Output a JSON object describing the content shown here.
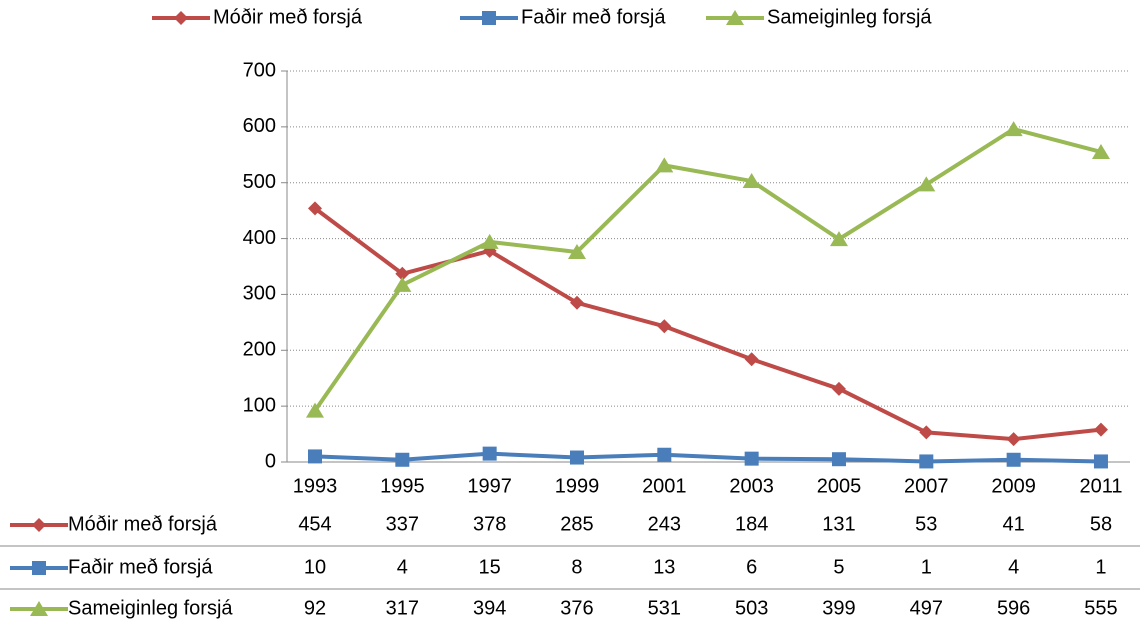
{
  "chart_data": {
    "type": "line",
    "categories": [
      "1993",
      "1995",
      "1997",
      "1999",
      "2001",
      "2003",
      "2005",
      "2007",
      "2009",
      "2011"
    ],
    "series": [
      {
        "name": "Móðir með forsjá",
        "color": "#be4b48",
        "marker": "diamond",
        "values": [
          454,
          337,
          378,
          285,
          243,
          184,
          131,
          53,
          41,
          58
        ]
      },
      {
        "name": "Faðir með forsjá",
        "color": "#4a7ebb",
        "marker": "square",
        "values": [
          10,
          4,
          15,
          8,
          13,
          6,
          5,
          1,
          4,
          1
        ]
      },
      {
        "name": "Sameiginleg forsjá",
        "color": "#98b954",
        "marker": "triangle",
        "values": [
          92,
          317,
          394,
          376,
          531,
          503,
          399,
          497,
          596,
          555
        ]
      }
    ],
    "ylim": [
      0,
      700
    ],
    "yticks": [
      0,
      100,
      200,
      300,
      400,
      500,
      600,
      700
    ],
    "grid": true,
    "legend": "top",
    "data_table": true
  }
}
